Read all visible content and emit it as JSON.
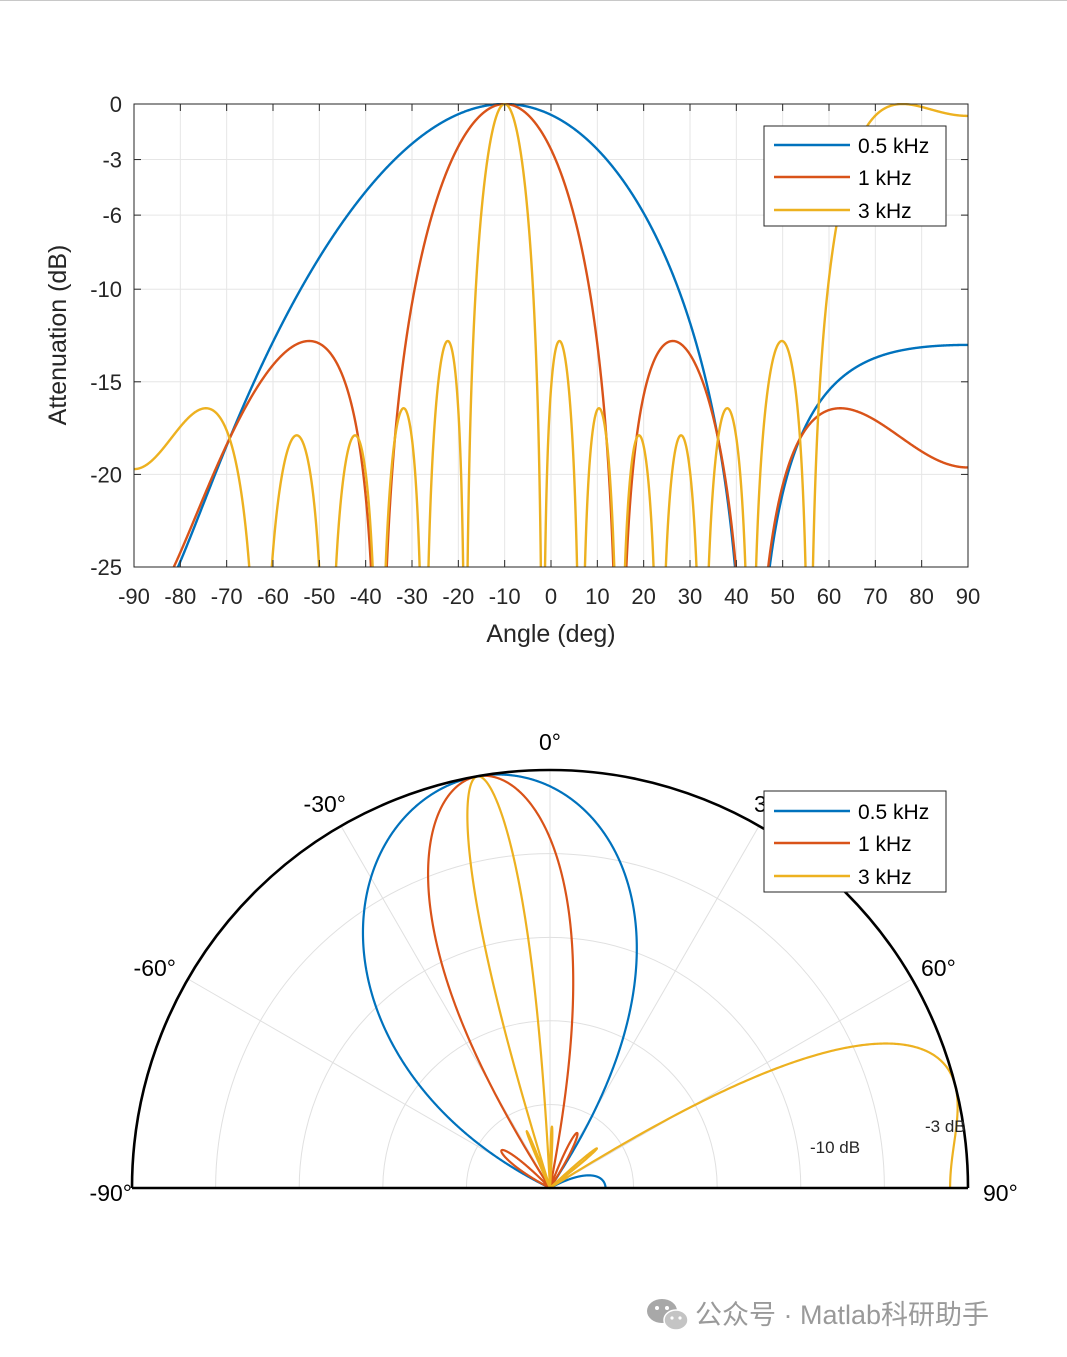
{
  "colors": {
    "blue": "#0072BD",
    "orange": "#D95319",
    "yellow": "#EDB120",
    "grid": "#e6e6e6",
    "axis": "#262626"
  },
  "chart_data": [
    {
      "type": "line",
      "xlabel": "Angle (deg)",
      "ylabel": "Attenuation (dB)",
      "xlim": [
        -90,
        90
      ],
      "ylim": [
        -25,
        0
      ],
      "xticks": [
        "-90",
        "-80",
        "-70",
        "-60",
        "-50",
        "-40",
        "-30",
        "-20",
        "-10",
        "0",
        "10",
        "20",
        "30",
        "40",
        "50",
        "60",
        "70",
        "80",
        "90"
      ],
      "yticks": [
        "0",
        "-3",
        "-6",
        "-10",
        "-15",
        "-20",
        "-25"
      ],
      "grid": true,
      "legend": "top-right",
      "series": [
        {
          "name": "0.5 kHz",
          "color": "#0072BD",
          "frequency_khz": 0.5,
          "steer_deg": -10
        },
        {
          "name": "1 kHz",
          "color": "#D95319",
          "frequency_khz": 1,
          "steer_deg": -10
        },
        {
          "name": "3 kHz",
          "color": "#EDB120",
          "frequency_khz": 3,
          "steer_deg": -10
        }
      ]
    },
    {
      "type": "polar",
      "theta_range": [
        -90,
        90
      ],
      "theta_labels": [
        "-90°",
        "-60°",
        "-30°",
        "0°",
        "30°",
        "60°",
        "90°"
      ],
      "r_labels": [
        "-10 dB",
        "-3 dB"
      ],
      "r_ticks_db": [
        -10,
        -3
      ],
      "legend": "top-right",
      "series": [
        {
          "name": "0.5 kHz",
          "color": "#0072BD"
        },
        {
          "name": "1 kHz",
          "color": "#D95319"
        },
        {
          "name": "3 kHz",
          "color": "#EDB120"
        }
      ]
    }
  ],
  "watermark": {
    "text": "公众号 · Matlab科研助手"
  }
}
